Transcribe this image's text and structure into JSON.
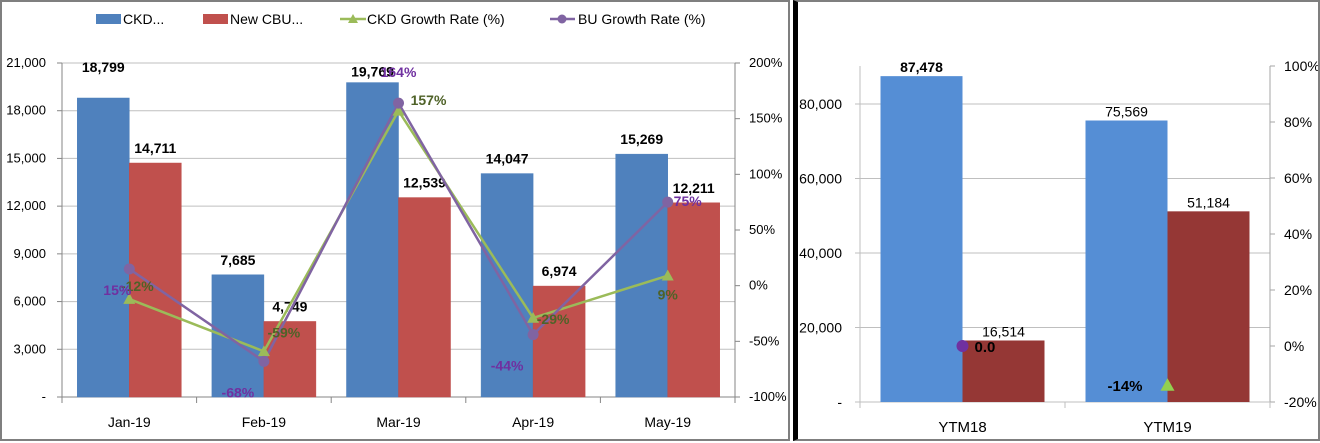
{
  "chart_data": [
    {
      "type": "bar",
      "combo": "bar+line",
      "title": "",
      "categories": [
        "Jan-19",
        "Feb-19",
        "Mar-19",
        "Apr-19",
        "May-19"
      ],
      "series": [
        {
          "name": "CKD...",
          "type": "bar",
          "axis": "left",
          "color": "#4f81bd",
          "values": [
            18799,
            7685,
            19769,
            14047,
            15269
          ],
          "labels": [
            "18,799",
            "7,685",
            "19,769",
            "14,047",
            "15,269"
          ]
        },
        {
          "name": "New CBU...",
          "type": "bar",
          "axis": "left",
          "color": "#c0504d",
          "values": [
            14711,
            4749,
            12539,
            6974,
            12211
          ],
          "labels": [
            "14,711",
            "4,749",
            "12,539",
            "6,974",
            "12,211"
          ]
        },
        {
          "name": "CKD Growth Rate (%)",
          "type": "line",
          "axis": "right",
          "marker": "triangle",
          "color": "#9bbb59",
          "label_color": "#4f6228",
          "values": [
            -12,
            -59,
            157,
            -29,
            9
          ],
          "labels": [
            "-12%",
            "-59%",
            "157%",
            "-29%",
            "9%"
          ]
        },
        {
          "name": "BU Growth Rate (%)",
          "type": "line",
          "axis": "right",
          "marker": "circle",
          "color": "#8064a2",
          "label_color": "#7030a0",
          "values": [
            15,
            -68,
            164,
            -44,
            75
          ],
          "labels": [
            "15%",
            "-68%",
            "164%",
            "-44%",
            "75%"
          ]
        }
      ],
      "y_left": {
        "range": [
          0,
          21000
        ],
        "ticks": [
          "-",
          "3,000",
          "6,000",
          "9,000",
          "12,000",
          "15,000",
          "18,000",
          "21,000"
        ],
        "tick_values": [
          0,
          3000,
          6000,
          9000,
          12000,
          15000,
          18000,
          21000
        ]
      },
      "y_right": {
        "range": [
          -100,
          200
        ],
        "ticks": [
          "-100%",
          "-50%",
          "0%",
          "50%",
          "100%",
          "150%",
          "200%"
        ],
        "tick_values": [
          -100,
          -50,
          0,
          50,
          100,
          150,
          200
        ]
      },
      "grid": true,
      "legend": {
        "position": "top",
        "entries": [
          "CKD...",
          "New CBU...",
          "CKD Growth Rate (%)",
          "BU Growth Rate (%)"
        ]
      }
    },
    {
      "type": "bar",
      "combo": "bar+line",
      "title": "",
      "categories": [
        "YTM18",
        "YTM19"
      ],
      "series": [
        {
          "name": "CKD",
          "type": "bar",
          "axis": "left",
          "color": "#558ed5",
          "values": [
            87478,
            75569
          ],
          "labels": [
            "87,478",
            "75,569"
          ]
        },
        {
          "name": "New CBU",
          "type": "bar",
          "axis": "left",
          "color": "#953735",
          "values": [
            16514,
            51184
          ],
          "labels": [
            "16,514",
            "51,184"
          ]
        },
        {
          "name": "BU Growth Rate",
          "type": "point",
          "axis": "right",
          "marker": "circle",
          "color": "#7030a0",
          "category_index": 0,
          "value": 0,
          "label": "0.0"
        },
        {
          "name": "CKD Growth Rate",
          "type": "point",
          "axis": "right",
          "marker": "triangle",
          "color": "#92d050",
          "category_index": 1,
          "value": -14,
          "label": "-14%"
        }
      ],
      "y_left": {
        "range": [
          0,
          90000
        ],
        "ticks": [
          "-",
          "20,000",
          "40,000",
          "60,000",
          "80,000"
        ],
        "tick_values": [
          0,
          20000,
          40000,
          60000,
          80000
        ]
      },
      "y_right": {
        "range": [
          -20,
          100
        ],
        "ticks": [
          "-20%",
          "0%",
          "20%",
          "40%",
          "60%",
          "80%",
          "100%"
        ],
        "tick_values": [
          -20,
          0,
          20,
          40,
          60,
          80,
          100
        ]
      },
      "grid": true,
      "legend": {
        "position": "none"
      }
    }
  ]
}
